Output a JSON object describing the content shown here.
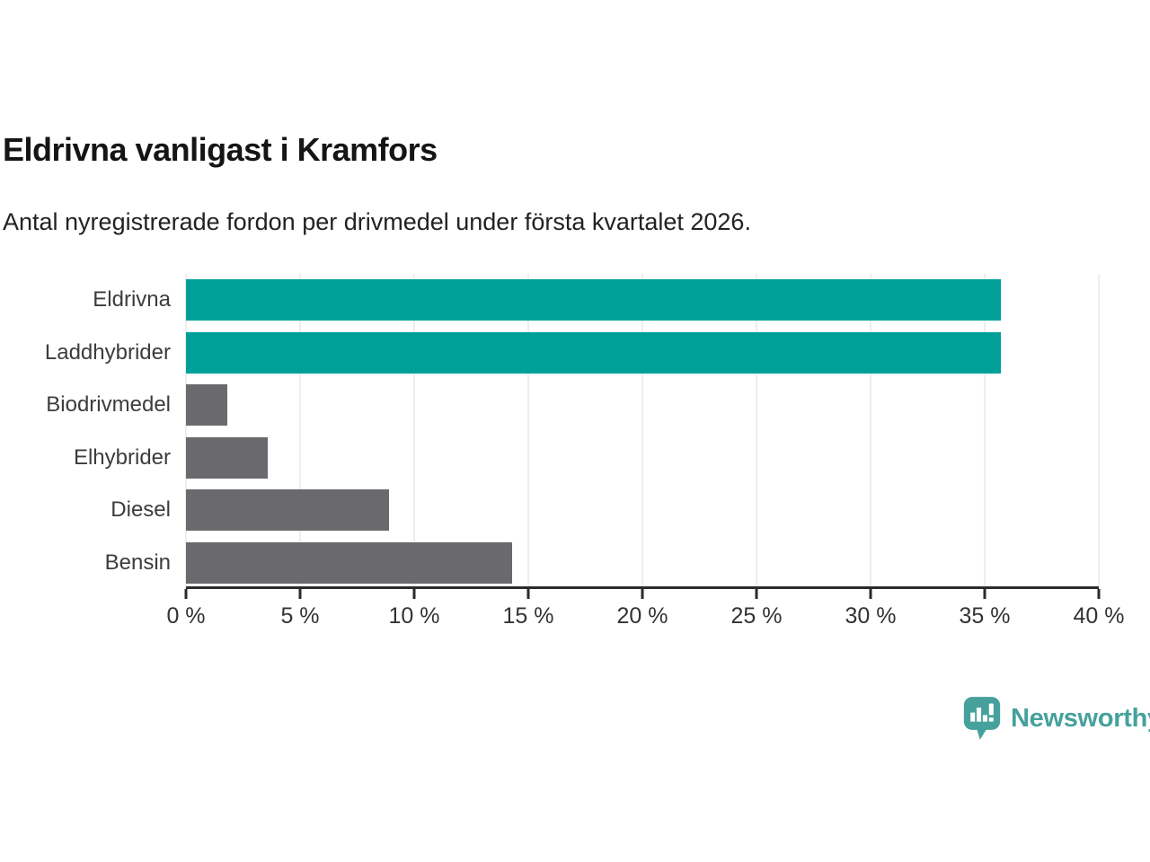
{
  "title": "Eldrivna vanligast i Kramfors",
  "subtitle": "Antal nyregistrerade fordon per drivmedel under första kvartalet 2026.",
  "chart_data": {
    "type": "bar",
    "orientation": "horizontal",
    "title": "Eldrivna vanligast i Kramfors",
    "subtitle": "Antal nyregistrerade fordon per drivmedel under första kvartalet 2026.",
    "categories": [
      "Eldrivna",
      "Laddhybrider",
      "Biodrivmedel",
      "Elhybrider",
      "Diesel",
      "Bensin"
    ],
    "values": [
      35.7,
      35.7,
      1.8,
      3.6,
      8.9,
      14.3
    ],
    "unit": "%",
    "xlim": [
      0,
      40
    ],
    "x_ticks": [
      0,
      5,
      10,
      15,
      20,
      25,
      30,
      35,
      40
    ],
    "x_tick_labels": [
      "0 %",
      "5 %",
      "10 %",
      "15 %",
      "20 %",
      "25 %",
      "30 %",
      "35 %",
      "40 %"
    ],
    "bar_colors": [
      "#00a099",
      "#00a099",
      "#6a6a6e",
      "#6a6a6e",
      "#6a6a6e",
      "#6a6a6e"
    ],
    "highlight_color": "#00a099",
    "default_color": "#6a6a6e",
    "grid": true,
    "gridline_color": "#dcdcdc",
    "legend": "none"
  },
  "branding": {
    "logo_text": "Newsworthy",
    "logo_color": "#46a19c"
  }
}
